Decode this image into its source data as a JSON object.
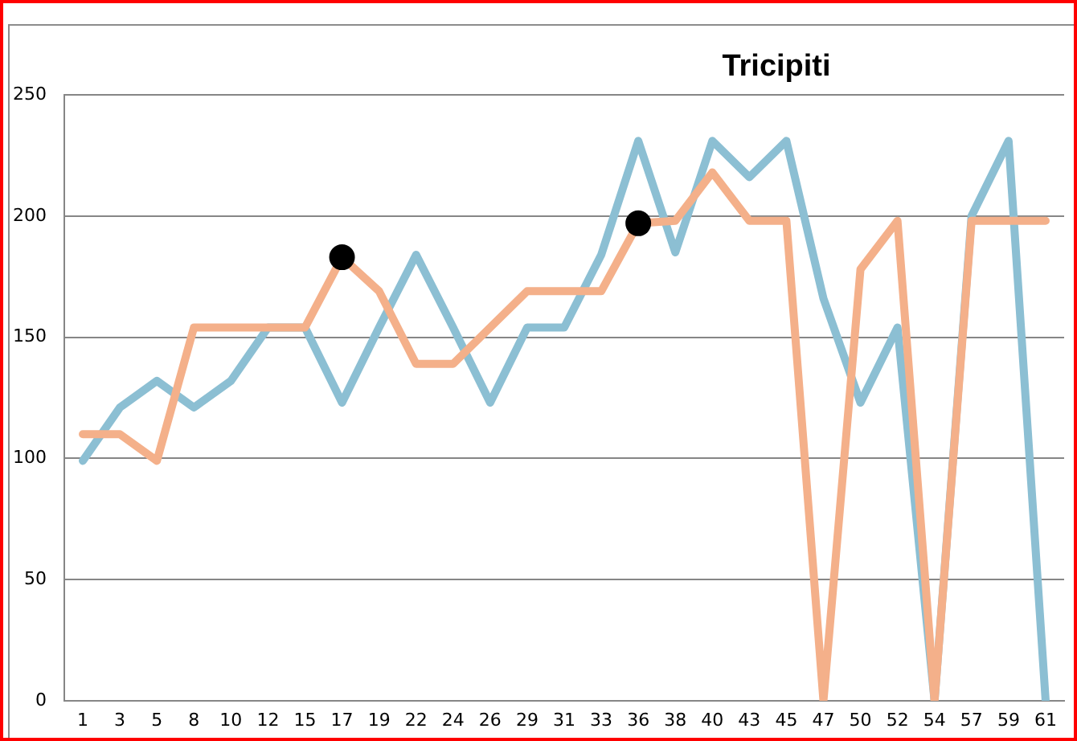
{
  "chart_data": {
    "type": "line",
    "title": "Tricipiti",
    "categories": [
      "1",
      "3",
      "5",
      "8",
      "10",
      "12",
      "15",
      "17",
      "19",
      "22",
      "24",
      "26",
      "29",
      "31",
      "33",
      "36",
      "38",
      "40",
      "43",
      "45",
      "47",
      "50",
      "52",
      "54",
      "57",
      "59",
      "61"
    ],
    "series": [
      {
        "color": "#8cbfd3",
        "values": [
          99,
          121,
          132,
          121,
          132,
          154,
          154,
          123,
          154,
          184,
          154,
          123,
          154,
          154,
          184,
          231,
          185,
          231,
          216,
          231,
          166,
          123,
          154,
          0,
          200,
          231,
          0
        ]
      },
      {
        "color": "#f4b08a",
        "values": [
          110,
          110,
          99,
          154,
          154,
          154,
          154,
          183,
          169,
          139,
          139,
          154,
          169,
          169,
          169,
          197,
          198,
          218,
          198,
          198,
          0,
          178,
          198,
          0,
          198,
          198,
          198
        ]
      },
      {
        "type": "scatter",
        "color": "#000000",
        "marker": "circle",
        "values": [
          null,
          null,
          null,
          null,
          null,
          null,
          null,
          183,
          null,
          null,
          null,
          null,
          null,
          null,
          null,
          197,
          null,
          null,
          null,
          null,
          null,
          null,
          null,
          null,
          null,
          null,
          null
        ]
      }
    ],
    "ylim": [
      0,
      250
    ],
    "yticks": [
      0,
      50,
      100,
      150,
      200,
      250
    ],
    "grid": "y",
    "marker": "none",
    "line_style": "solid"
  }
}
